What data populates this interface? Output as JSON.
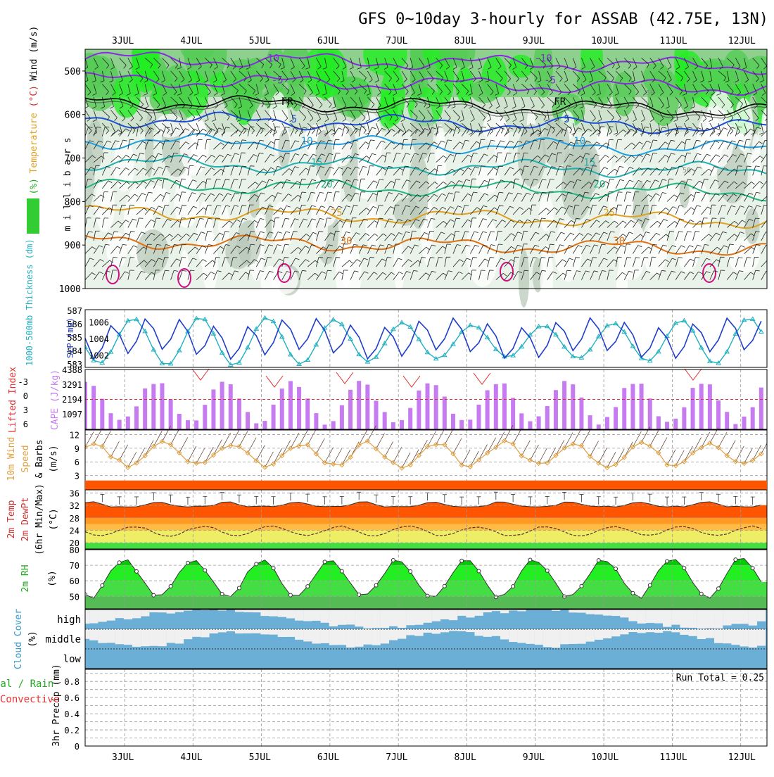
{
  "title": "GFS 0~10day 3-hourly for ASSAB (42.75E, 13N)",
  "date_labels": [
    "3JUL",
    "4JUL",
    "5JUL",
    "6JUL",
    "7JUL",
    "8JUL",
    "9JUL",
    "10JUL",
    "11JUL",
    "12JUL"
  ],
  "colors": {
    "purple": "#8a2be2",
    "black": "#000000",
    "blue": "#1f4fd8",
    "sky": "#1fa0e0",
    "teal": "#20b0b0",
    "green": "#20b880",
    "orange": "#e0a020",
    "darkorange": "#e07010",
    "magenta": "#d01080",
    "slp": "#1f3fc8",
    "thick": "#20b0c0",
    "cape": "#c77bf0",
    "li": "#e03030",
    "wind10": "#e0a040",
    "tempfill": "#ff4500",
    "rhgreen": "#22dd22",
    "cloud": "#6baed6",
    "cloudgap": "#f0f0f0",
    "precipGreen": "#22bb22",
    "precipRed": "#ee3333"
  },
  "chart_data": [
    {
      "type": "heatmap",
      "name": "upper-air",
      "ylabel": "m i l l i b a r s",
      "ylabel_parts": [
        {
          "text": "RH (%)",
          "color": "#22aa22"
        },
        {
          "text": "Temperature",
          "color": "#e0a020"
        },
        {
          "text": "(°C)",
          "color": "#d03030"
        },
        {
          "text": "Wind (m/s)",
          "color": "#000000"
        }
      ],
      "yticks": [
        500,
        600,
        700,
        800,
        900,
        1000
      ],
      "ylim": [
        450,
        1000
      ],
      "rh_labels": [
        "50"
      ],
      "isotherms": [
        {
          "level": 470,
          "value": "-10",
          "color": "#8a2be2"
        },
        {
          "level": 520,
          "value": "-5",
          "color": "#8a2be2"
        },
        {
          "level": 570,
          "value": "FR",
          "color": "#000000"
        },
        {
          "level": 610,
          "value": "5",
          "color": "#1f4fd8"
        },
        {
          "level": 660,
          "value": "10",
          "color": "#1fa0e0"
        },
        {
          "level": 710,
          "value": "15",
          "color": "#20b0b0"
        },
        {
          "level": 760,
          "value": "20",
          "color": "#20b880"
        },
        {
          "level": 825,
          "value": "25",
          "color": "#e0a020"
        },
        {
          "level": 890,
          "value": "30",
          "color": "#e07010"
        }
      ]
    },
    {
      "type": "line",
      "name": "slp-thickness",
      "ylabel_left": "1000-500mb Thickness (dm)",
      "ylabel_right": "SLP (mb)",
      "thick_ticks": [
        "587",
        "586",
        "585",
        "584",
        "583"
      ],
      "slp_ticks": [
        "1006",
        "1004",
        "1002"
      ],
      "ylim_slp": [
        1000.5,
        1007.5
      ],
      "ylim_thick": [
        583,
        587
      ]
    },
    {
      "type": "bar",
      "name": "cape-li",
      "ylabel_left": "Lifted Index",
      "ylabel_right": "CAPE (J/kg)",
      "li_ticks": [
        "-3",
        "0",
        "3",
        "6"
      ],
      "cape_ticks": [
        "4388",
        "3291",
        "2194",
        "1097"
      ],
      "ylim_cape": [
        0,
        4388
      ]
    },
    {
      "type": "line",
      "name": "wind10m",
      "ylabel": "10m Wind Speed & Barbs (m/s)",
      "ylabel_parts": [
        {
          "text": "10m Wind",
          "color": "#e0a040"
        },
        {
          "text": "Speed",
          "color": "#e0a040"
        },
        {
          "text": "& Barbs",
          "color": "#000000"
        },
        {
          "text": "(m/s)",
          "color": "#000000"
        }
      ],
      "yticks": [
        "12",
        "9",
        "6",
        "3"
      ],
      "ylim": [
        0,
        13
      ]
    },
    {
      "type": "area",
      "name": "temp2m",
      "ylabel_parts": [
        {
          "text": "2m Temp",
          "color": "#d03030"
        },
        {
          "text": "2m DewPt",
          "color": "#d03030"
        },
        {
          "text": "(6hr Min/Max)",
          "color": "#000000"
        },
        {
          "text": "(°C)",
          "color": "#000000"
        }
      ],
      "yticks": [
        "36",
        "32",
        "28",
        "24",
        "20"
      ],
      "ylim": [
        18,
        37
      ]
    },
    {
      "type": "area",
      "name": "rh2m",
      "ylabel": "2m RH",
      "yunit": "(%)",
      "yticks": [
        "80",
        "70",
        "60",
        "50"
      ],
      "ylim": [
        42,
        80
      ]
    },
    {
      "type": "bar",
      "name": "cloud",
      "ylabel": "Cloud Cover",
      "yunit": "(%)",
      "levels": [
        "high",
        "middle",
        "low"
      ]
    },
    {
      "type": "bar",
      "name": "precip",
      "ylabel_parts": [
        {
          "text": "tal / Rain",
          "color": "#22aa22"
        },
        {
          "text": "Convective",
          "color": "#ee3333"
        }
      ],
      "ylabel": "3hr Precip (mm)",
      "run_total": "Run Total = 0.25",
      "yticks": [
        "0.8",
        "0.6",
        "0.4",
        "0.2",
        "0"
      ],
      "ylim": [
        0,
        0.95
      ],
      "bars": [
        {
          "t": 68.2,
          "total": 0.13,
          "conv": 0.1
        },
        {
          "t": 68.5,
          "total": 0.06,
          "conv": 0.05
        },
        {
          "t": 68.8,
          "total": 0.06,
          "conv": 0.05
        }
      ]
    }
  ]
}
